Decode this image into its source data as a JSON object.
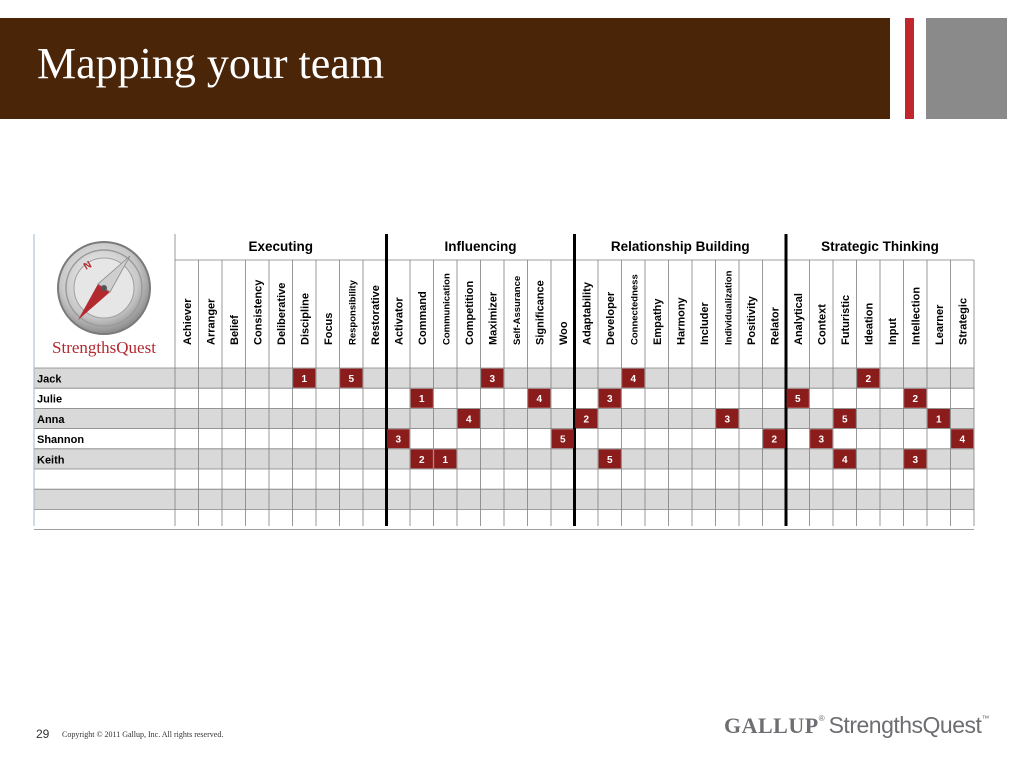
{
  "slide": {
    "title": "Mapping your team",
    "page_number": "29",
    "copyright": "Copyright © 2011 Gallup, Inc. All rights reserved."
  },
  "brand": {
    "logo_text": "StrengthsQuest",
    "footer_gallup": "GALLUP",
    "footer_product": "StrengthsQuest"
  },
  "colors": {
    "title_bar": "#4a2508",
    "accent_red": "#c0262c",
    "accent_gray": "#8a8a8a",
    "rank_cell": "#8b1c1c",
    "row_shade": "#d9d9d9"
  },
  "table": {
    "groups": [
      {
        "name": "Executing",
        "themes": [
          "Achiever",
          "Arranger",
          "Belief",
          "Consistency",
          "Deliberative",
          "Discipline",
          "Focus",
          "Responsibility",
          "Restorative"
        ]
      },
      {
        "name": "Influencing",
        "themes": [
          "Activator",
          "Command",
          "Communication",
          "Competition",
          "Maximizer",
          "Self-Assurance",
          "Significance",
          "Woo"
        ]
      },
      {
        "name": "Relationship Building",
        "themes": [
          "Adaptability",
          "Developer",
          "Connectedness",
          "Empathy",
          "Harmony",
          "Includer",
          "Individualization",
          "Positivity",
          "Relator"
        ]
      },
      {
        "name": "Strategic Thinking",
        "themes": [
          "Analytical",
          "Context",
          "Futuristic",
          "Ideation",
          "Input",
          "Intellection",
          "Learner",
          "Strategic"
        ]
      }
    ],
    "people": [
      {
        "name": "Jack",
        "ranks": {
          "Discipline": 1,
          "Responsibility": 5,
          "Maximizer": 3,
          "Connectedness": 4,
          "Ideation": 2
        }
      },
      {
        "name": "Julie",
        "ranks": {
          "Command": 1,
          "Significance": 4,
          "Developer": 3,
          "Analytical": 5,
          "Intellection": 2
        }
      },
      {
        "name": "Anna",
        "ranks": {
          "Competition": 4,
          "Adaptability": 2,
          "Individualization": 3,
          "Futuristic": 5,
          "Learner": 1
        }
      },
      {
        "name": "Shannon",
        "ranks": {
          "Activator": 3,
          "Woo": 5,
          "Relator": 2,
          "Context": 3,
          "Strategic": 4
        }
      },
      {
        "name": "Keith",
        "ranks": {
          "Command": 2,
          "Communication": 1,
          "Developer": 5,
          "Futuristic": 4,
          "Intellection": 3
        }
      },
      {
        "name": "",
        "ranks": {}
      },
      {
        "name": "",
        "ranks": {}
      },
      {
        "name": "",
        "ranks": {}
      }
    ]
  }
}
